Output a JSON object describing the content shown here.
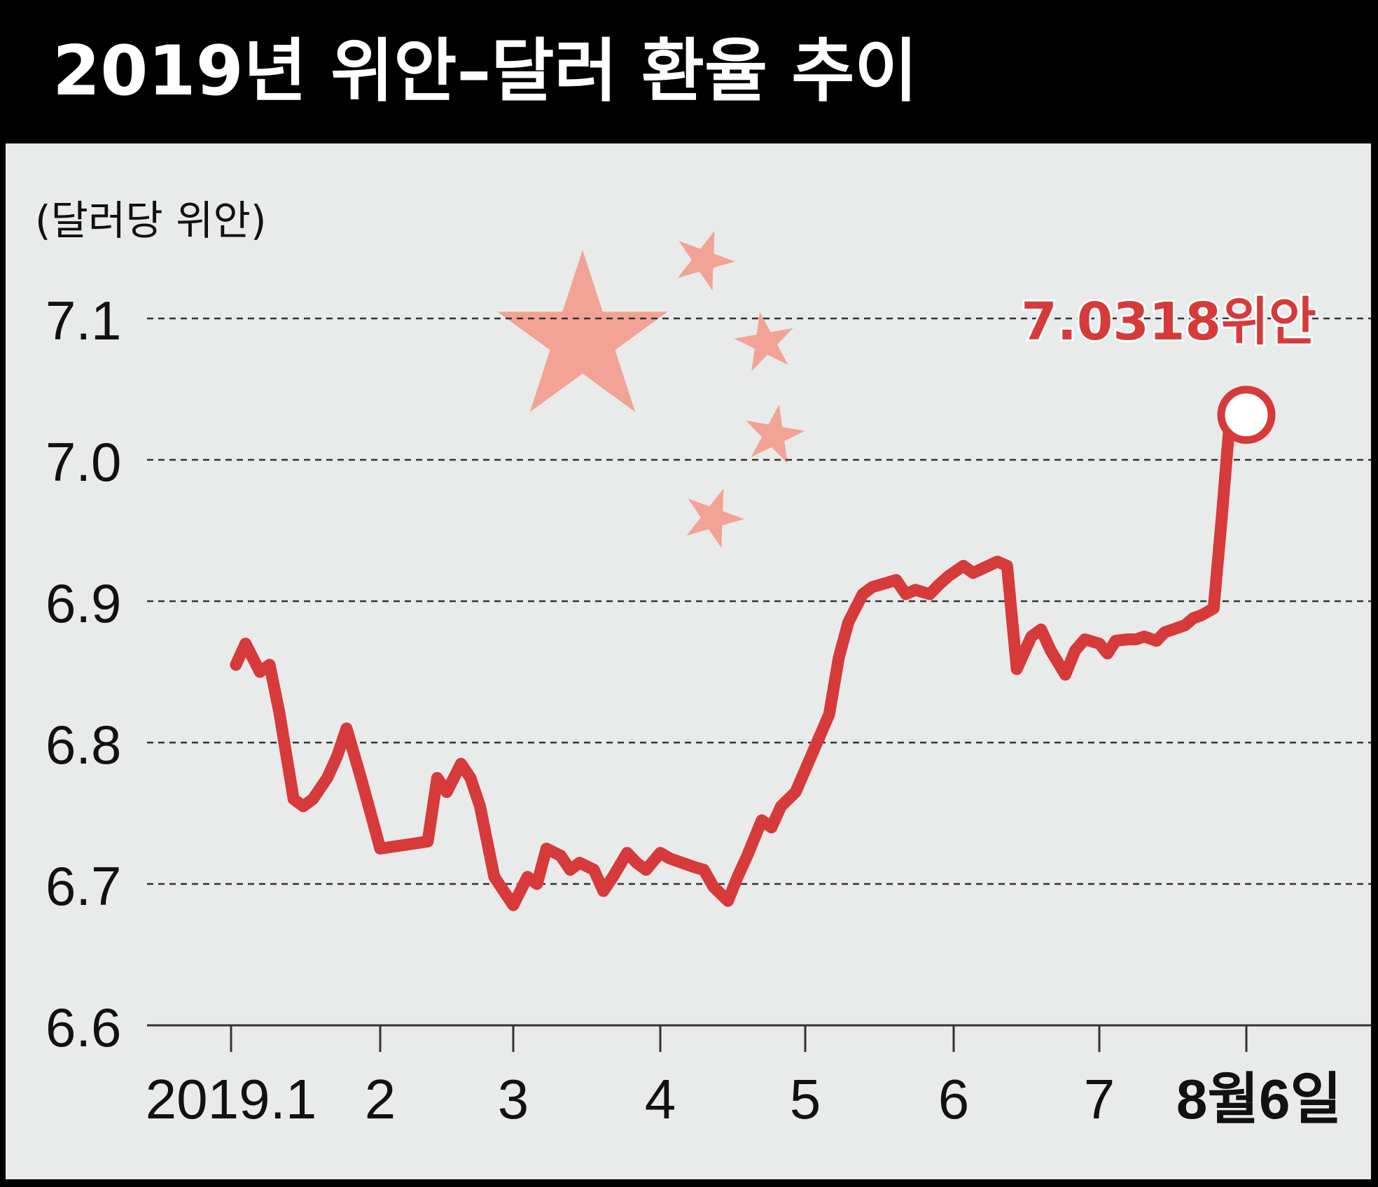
{
  "chart_data": {
    "type": "line",
    "title": "2019년 위안–달러 환율 추이",
    "ylabel": "(달러당 위안)",
    "ylim": [
      6.6,
      7.1
    ],
    "yticks": [
      "7.1",
      "7.0",
      "6.9",
      "6.8",
      "6.7",
      "6.6"
    ],
    "xticks": [
      "2019.1",
      "2",
      "3",
      "4",
      "5",
      "6",
      "7",
      "8월6일"
    ],
    "grid": "horizontal dashed",
    "line_color": "#d63a3a",
    "flag_star_color": "#f2a396",
    "last_value_label": "7.0318위안",
    "x": [
      "2019-01-02",
      "2019-01-04",
      "2019-01-07",
      "2019-01-09",
      "2019-01-11",
      "2019-01-14",
      "2019-01-16",
      "2019-01-18",
      "2019-01-21",
      "2019-01-23",
      "2019-01-25",
      "2019-01-28",
      "2019-01-30",
      "2019-02-01",
      "2019-02-11",
      "2019-02-13",
      "2019-02-15",
      "2019-02-18",
      "2019-02-20",
      "2019-02-22",
      "2019-02-25",
      "2019-02-27",
      "2019-03-01",
      "2019-03-04",
      "2019-03-06",
      "2019-03-08",
      "2019-03-11",
      "2019-03-13",
      "2019-03-15",
      "2019-03-18",
      "2019-03-20",
      "2019-03-22",
      "2019-03-25",
      "2019-03-27",
      "2019-03-29",
      "2019-04-01",
      "2019-04-03",
      "2019-04-08",
      "2019-04-10",
      "2019-04-12",
      "2019-04-15",
      "2019-04-17",
      "2019-04-19",
      "2019-04-22",
      "2019-04-24",
      "2019-04-26",
      "2019-04-29",
      "2019-05-06",
      "2019-05-08",
      "2019-05-10",
      "2019-05-13",
      "2019-05-15",
      "2019-05-17",
      "2019-05-20",
      "2019-05-22",
      "2019-05-24",
      "2019-05-27",
      "2019-05-29",
      "2019-05-31",
      "2019-06-03",
      "2019-06-05",
      "2019-06-10",
      "2019-06-12",
      "2019-06-14",
      "2019-06-17",
      "2019-06-19",
      "2019-06-21",
      "2019-06-24",
      "2019-06-26",
      "2019-06-28",
      "2019-07-01",
      "2019-07-03",
      "2019-07-05",
      "2019-07-08",
      "2019-07-10",
      "2019-07-12",
      "2019-07-15",
      "2019-07-17",
      "2019-07-19",
      "2019-07-22",
      "2019-07-24",
      "2019-07-26",
      "2019-07-29",
      "2019-07-31",
      "2019-08-02",
      "2019-08-05",
      "2019-08-06"
    ],
    "values": [
      6.855,
      6.87,
      6.85,
      6.855,
      6.822,
      6.76,
      6.755,
      6.76,
      6.775,
      6.79,
      6.81,
      6.775,
      6.75,
      6.725,
      6.73,
      6.775,
      6.765,
      6.785,
      6.775,
      6.755,
      6.705,
      6.695,
      6.685,
      6.705,
      6.7,
      6.725,
      6.72,
      6.71,
      6.715,
      6.71,
      6.695,
      6.705,
      6.722,
      6.715,
      6.71,
      6.722,
      6.718,
      6.712,
      6.71,
      6.698,
      6.688,
      6.705,
      6.72,
      6.745,
      6.74,
      6.755,
      6.765,
      6.82,
      6.86,
      6.885,
      6.905,
      6.91,
      6.912,
      6.915,
      6.905,
      6.908,
      6.905,
      6.912,
      6.918,
      6.925,
      6.92,
      6.928,
      6.925,
      6.852,
      6.875,
      6.88,
      6.865,
      6.848,
      6.865,
      6.873,
      6.87,
      6.863,
      6.872,
      6.873,
      6.873,
      6.875,
      6.872,
      6.878,
      6.88,
      6.883,
      6.888,
      6.89,
      6.895,
      6.96,
      7.03,
      7.03,
      7.0318
    ]
  }
}
